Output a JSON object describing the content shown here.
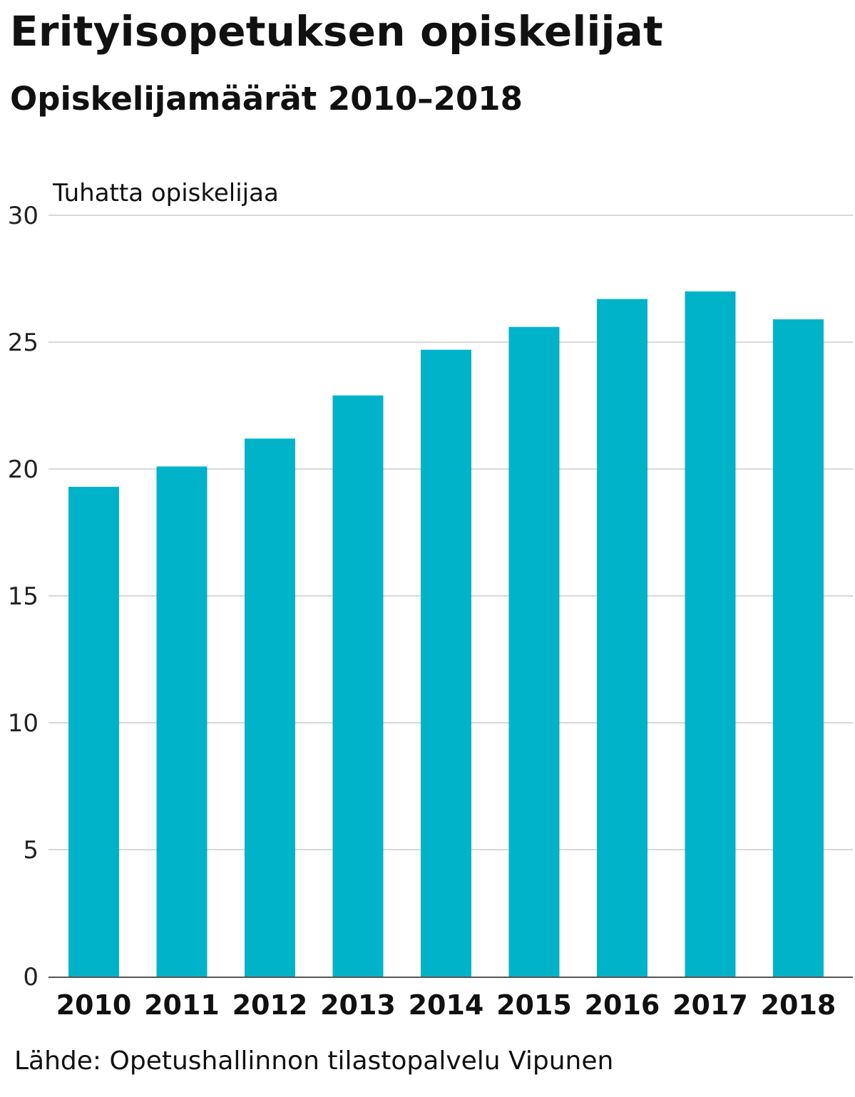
{
  "title": "Erityisopetuksen opiskelijat",
  "subtitle": "Opiskelijamäärät 2010–2018",
  "source": "Lähde: Opetushallinnon tilastopalvelu Vipunen",
  "colors": {
    "bar": "#00b3c8",
    "grid": "#cccccc",
    "axis": "#555555"
  },
  "chart_data": {
    "type": "bar",
    "title": "Erityisopetuksen opiskelijat",
    "subtitle": "Opiskelijamäärät 2010–2018",
    "ylabel": "Tuhatta opiskelijaa",
    "xlabel": "",
    "categories": [
      "2010",
      "2011",
      "2012",
      "2013",
      "2014",
      "2015",
      "2016",
      "2017",
      "2018"
    ],
    "values": [
      19.3,
      20.1,
      21.2,
      22.9,
      24.7,
      25.6,
      26.7,
      27.0,
      25.9
    ],
    "ylim": [
      0,
      30
    ],
    "yticks": [
      "0",
      "5",
      "10",
      "15",
      "20",
      "25",
      "30"
    ],
    "grid": true,
    "legend": false
  }
}
